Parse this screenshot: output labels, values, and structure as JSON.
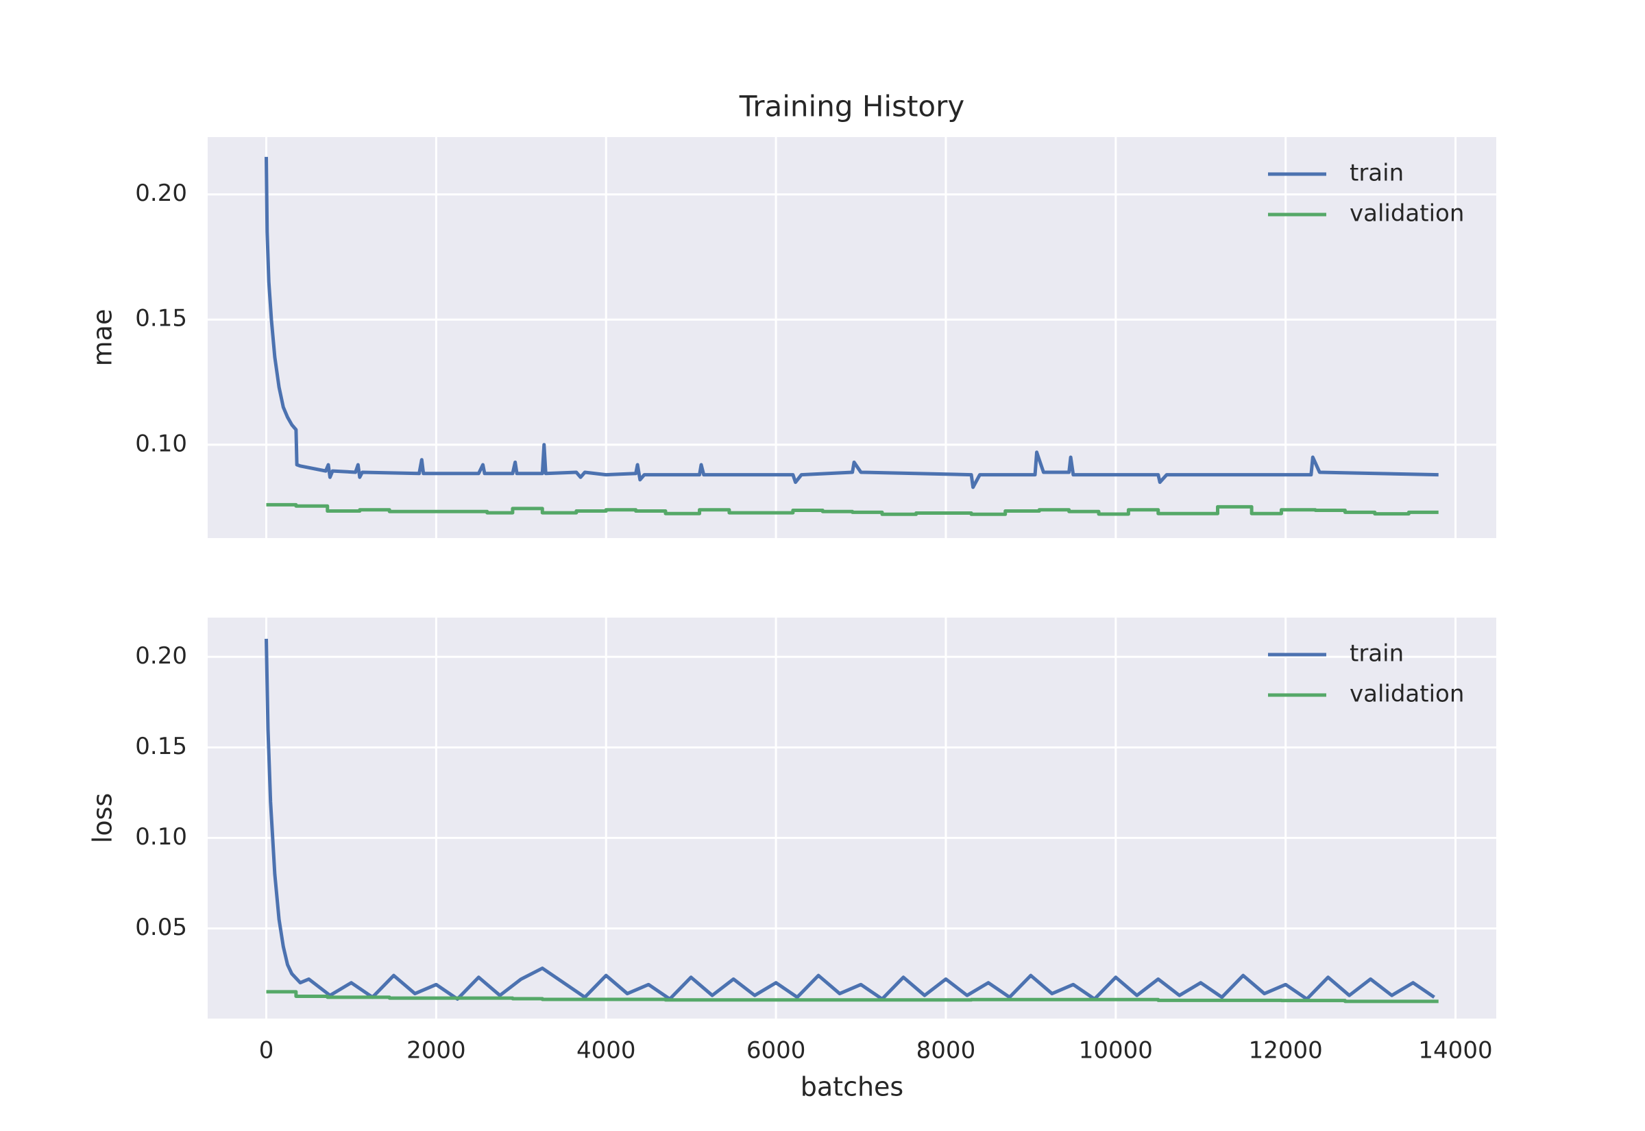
{
  "chart_data": [
    {
      "type": "line",
      "title": "Training History",
      "ylabel": "mae",
      "xlim": [
        -690,
        14480
      ],
      "ylim": [
        0.0627,
        0.2229
      ],
      "xticks": [
        0,
        2000,
        4000,
        6000,
        8000,
        10000,
        12000,
        14000
      ],
      "yticks": [
        {
          "value": 0.1,
          "label": "0.10"
        },
        0.15,
        {
          "value": 0.2,
          "label": "0.20"
        }
      ],
      "grid": true,
      "legend": "upper right",
      "background": "#eaeaf2",
      "series": [
        {
          "name": "train",
          "color": "#4c72b0",
          "x": [
            0,
            10,
            30,
            60,
            100,
            150,
            200,
            250,
            300,
            350,
            360,
            400,
            700,
            730,
            750,
            780,
            1050,
            1080,
            1100,
            1130,
            1800,
            1830,
            1850,
            2500,
            2550,
            2570,
            2900,
            2930,
            2950,
            3250,
            3270,
            3290,
            3650,
            3700,
            3750,
            4000,
            4350,
            4370,
            4400,
            4450,
            5100,
            5120,
            5150,
            6200,
            6230,
            6300,
            6900,
            6920,
            7000,
            8300,
            8320,
            8400,
            9050,
            9070,
            9150,
            9450,
            9470,
            9500,
            10500,
            10520,
            10600,
            12300,
            12320,
            12400,
            13800
          ],
          "values": [
            0.215,
            0.185,
            0.165,
            0.15,
            0.135,
            0.123,
            0.115,
            0.111,
            0.108,
            0.106,
            0.092,
            0.0915,
            0.0895,
            0.092,
            0.087,
            0.0895,
            0.089,
            0.092,
            0.087,
            0.089,
            0.0885,
            0.094,
            0.0885,
            0.0885,
            0.092,
            0.0885,
            0.0885,
            0.093,
            0.0885,
            0.0885,
            0.1,
            0.0885,
            0.089,
            0.087,
            0.089,
            0.088,
            0.0885,
            0.092,
            0.086,
            0.088,
            0.088,
            0.092,
            0.088,
            0.088,
            0.085,
            0.088,
            0.089,
            0.093,
            0.089,
            0.088,
            0.083,
            0.088,
            0.088,
            0.097,
            0.089,
            0.089,
            0.095,
            0.088,
            0.088,
            0.085,
            0.088,
            0.088,
            0.095,
            0.089,
            0.088
          ]
        },
        {
          "name": "validation",
          "color": "#55a868",
          "x": [
            0,
            350,
            350,
            720,
            720,
            1100,
            1100,
            1450,
            1450,
            2600,
            2600,
            2900,
            2900,
            3250,
            3250,
            3650,
            3650,
            4000,
            4000,
            4350,
            4350,
            4700,
            4700,
            5100,
            5100,
            5450,
            5450,
            6200,
            6200,
            6550,
            6550,
            6900,
            6900,
            7250,
            7250,
            7650,
            7650,
            8300,
            8300,
            8700,
            8700,
            9100,
            9100,
            9450,
            9450,
            9800,
            9800,
            10150,
            10150,
            10500,
            10500,
            11200,
            11200,
            11600,
            11600,
            11950,
            11950,
            12350,
            12350,
            12700,
            12700,
            13050,
            13050,
            13450,
            13450,
            13800
          ],
          "values": [
            0.076,
            0.076,
            0.0755,
            0.0755,
            0.0735,
            0.0735,
            0.074,
            0.074,
            0.0733,
            0.0733,
            0.0728,
            0.0728,
            0.0745,
            0.0745,
            0.0728,
            0.0728,
            0.0735,
            0.0735,
            0.074,
            0.074,
            0.0735,
            0.0735,
            0.0725,
            0.0725,
            0.074,
            0.074,
            0.0728,
            0.0728,
            0.0738,
            0.0738,
            0.0733,
            0.0733,
            0.073,
            0.073,
            0.0722,
            0.0722,
            0.0727,
            0.0727,
            0.0722,
            0.0722,
            0.0735,
            0.0735,
            0.074,
            0.074,
            0.0733,
            0.0733,
            0.0723,
            0.0723,
            0.074,
            0.074,
            0.0725,
            0.0725,
            0.0752,
            0.0752,
            0.0725,
            0.0725,
            0.074,
            0.074,
            0.0738,
            0.0738,
            0.073,
            0.073,
            0.0724,
            0.0724,
            0.073,
            0.073
          ]
        }
      ]
    },
    {
      "type": "line",
      "ylabel": "loss",
      "xlabel": "batches",
      "xlim": [
        -690,
        14480
      ],
      "ylim": [
        0.0002,
        0.2217
      ],
      "xticks": [
        0,
        2000,
        4000,
        6000,
        8000,
        10000,
        12000,
        14000
      ],
      "yticks": [
        0.05,
        {
          "value": 0.1,
          "label": "0.10"
        },
        0.15,
        {
          "value": 0.2,
          "label": "0.20"
        }
      ],
      "grid": true,
      "legend": "upper right",
      "background": "#eaeaf2",
      "series": [
        {
          "name": "train",
          "color": "#4c72b0",
          "x": [
            0,
            20,
            50,
            100,
            150,
            200,
            250,
            300,
            400,
            500,
            750,
            1000,
            1250,
            1500,
            1750,
            2000,
            2250,
            2500,
            2750,
            3000,
            3250,
            3500,
            3750,
            4000,
            4250,
            4500,
            4750,
            5000,
            5250,
            5500,
            5750,
            6000,
            6250,
            6500,
            6750,
            7000,
            7250,
            7500,
            7750,
            8000,
            8250,
            8500,
            8750,
            9000,
            9250,
            9500,
            9750,
            10000,
            10250,
            10500,
            10750,
            11000,
            11250,
            11500,
            11750,
            12000,
            12250,
            12500,
            12750,
            13000,
            13250,
            13500,
            13750
          ],
          "values": [
            0.21,
            0.16,
            0.12,
            0.08,
            0.055,
            0.04,
            0.03,
            0.025,
            0.02,
            0.022,
            0.013,
            0.02,
            0.012,
            0.024,
            0.014,
            0.019,
            0.011,
            0.023,
            0.013,
            0.022,
            0.028,
            0.02,
            0.012,
            0.024,
            0.014,
            0.019,
            0.011,
            0.023,
            0.013,
            0.022,
            0.013,
            0.02,
            0.012,
            0.024,
            0.014,
            0.019,
            0.011,
            0.023,
            0.013,
            0.022,
            0.013,
            0.02,
            0.012,
            0.024,
            0.014,
            0.019,
            0.011,
            0.023,
            0.013,
            0.022,
            0.013,
            0.02,
            0.012,
            0.024,
            0.014,
            0.019,
            0.011,
            0.023,
            0.013,
            0.022,
            0.013,
            0.02,
            0.012
          ]
        },
        {
          "name": "validation",
          "color": "#55a868",
          "x": [
            0,
            350,
            350,
            720,
            720,
            1450,
            1450,
            2900,
            2900,
            3250,
            3250,
            4700,
            4700,
            8300,
            8300,
            10500,
            10500,
            11950,
            11950,
            12700,
            12700,
            13800
          ],
          "values": [
            0.015,
            0.015,
            0.0125,
            0.0125,
            0.012,
            0.012,
            0.0115,
            0.0115,
            0.0112,
            0.0112,
            0.0108,
            0.0108,
            0.0105,
            0.0105,
            0.0107,
            0.0107,
            0.0103,
            0.0103,
            0.0102,
            0.0102,
            0.0097,
            0.0097
          ]
        }
      ]
    }
  ]
}
